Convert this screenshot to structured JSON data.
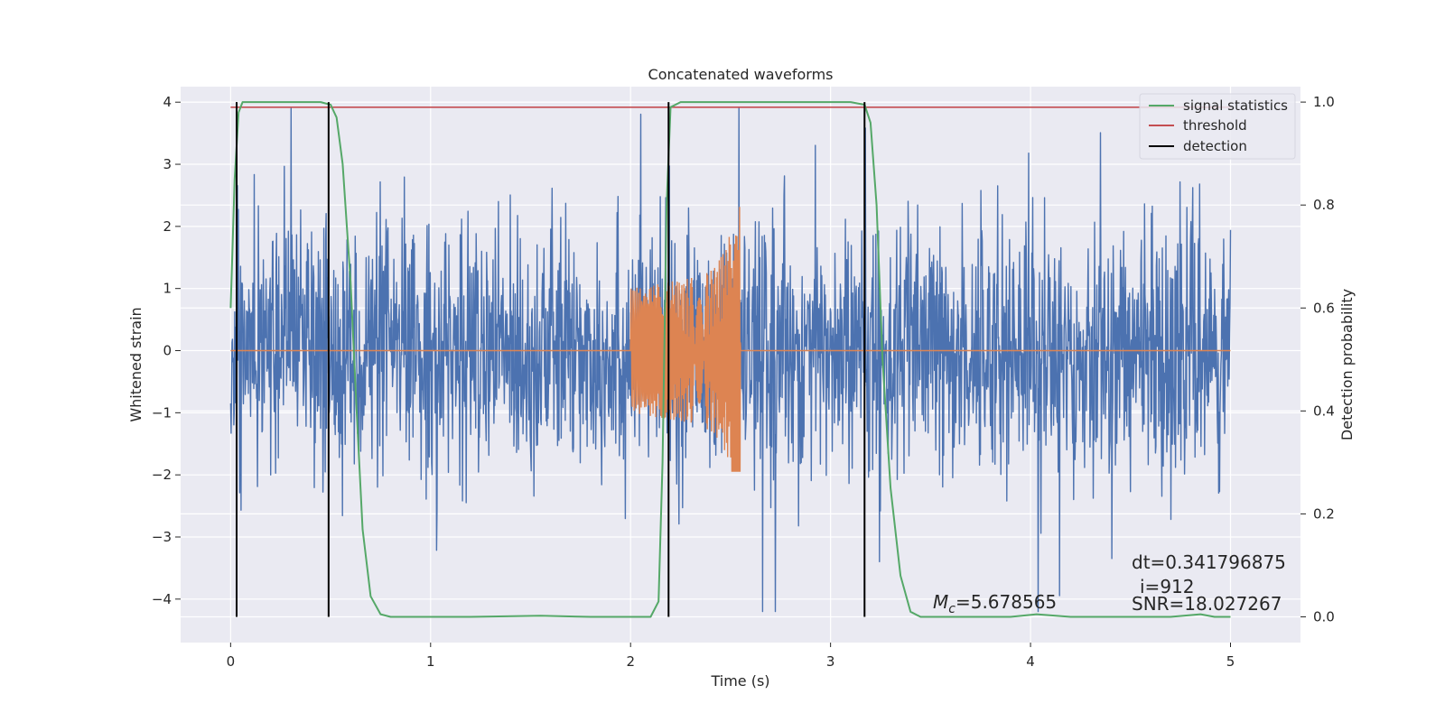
{
  "chart_data": {
    "type": "line",
    "title": "Concatenated waveforms",
    "xlabel": "Time (s)",
    "ylabel": "Whitened strain",
    "y2label": "Detection probability",
    "xlim": [
      -0.25,
      5.35
    ],
    "ylim": [
      -4.7,
      4.25
    ],
    "y2lim": [
      -0.05,
      1.03
    ],
    "x_ticks": [
      0,
      1,
      2,
      3,
      4,
      5
    ],
    "y_ticks": [
      -4,
      -3,
      -2,
      -1,
      0,
      1,
      2,
      3,
      4
    ],
    "y2_ticks": [
      0.0,
      0.2,
      0.4,
      0.6,
      0.8,
      1.0
    ],
    "x_tick_labels": [
      "0",
      "1",
      "2",
      "3",
      "4",
      "5"
    ],
    "y_tick_labels": [
      "−4",
      "−3",
      "−2",
      "−1",
      "0",
      "1",
      "2",
      "3",
      "4"
    ],
    "y2_tick_labels": [
      "0.0",
      "0.2",
      "0.4",
      "0.6",
      "0.8",
      "1.0"
    ],
    "grid": true,
    "legend_position": "top-right",
    "colors": {
      "noise": "#4c72b0",
      "waveform": "#dd8452",
      "signal_statistics": "#55a868",
      "threshold": "#c44e52",
      "detection": "#000000",
      "plot_bg": "#eaeaf2",
      "grid": "#ffffff"
    },
    "legend": [
      {
        "name": "signal statistics",
        "color": "#55a868"
      },
      {
        "name": "threshold",
        "color": "#c44e52"
      },
      {
        "name": "detection",
        "color": "#000000"
      }
    ],
    "noise": {
      "x_range": [
        0,
        5
      ],
      "y_range_approx": [
        -4.2,
        3.9
      ],
      "typical_amplitude": 1.0
    },
    "waveform": {
      "x_range": [
        2.0,
        2.55
      ],
      "peak_amplitude": 2.8,
      "min_amplitude": -1.95
    },
    "signal_statistics": {
      "x": [
        0,
        0.02,
        0.04,
        0.06,
        0.1,
        0.2,
        0.45,
        0.5,
        0.53,
        0.56,
        0.6,
        0.63,
        0.66,
        0.7,
        0.75,
        0.8,
        1.2,
        1.55,
        1.8,
        2.1,
        2.14,
        2.16,
        2.18,
        2.2,
        2.25,
        2.4,
        3.1,
        3.17,
        3.2,
        3.23,
        3.26,
        3.3,
        3.35,
        3.4,
        3.45,
        3.5,
        3.9,
        4.03,
        4.2,
        4.7,
        4.85,
        4.92,
        5.0
      ],
      "y": [
        0.6,
        0.85,
        0.98,
        1.0,
        1.0,
        1.0,
        1.0,
        0.995,
        0.97,
        0.88,
        0.65,
        0.4,
        0.17,
        0.04,
        0.005,
        0.0,
        0.0,
        0.002,
        0.0,
        0.0,
        0.03,
        0.3,
        0.8,
        0.99,
        1.0,
        1.0,
        1.0,
        0.995,
        0.96,
        0.8,
        0.5,
        0.25,
        0.08,
        0.01,
        0.0,
        0.0,
        0.0,
        0.005,
        0.0,
        0.0,
        0.005,
        0.0,
        0.0
      ]
    },
    "threshold": {
      "value": 0.99,
      "x_range": [
        0,
        5
      ]
    },
    "detections": [
      0.03,
      0.49,
      2.19,
      3.17
    ],
    "annotations": [
      {
        "label": "Mc",
        "value": "=5.678565"
      },
      {
        "text": "dt=0.341796875"
      },
      {
        "text": "i=912"
      },
      {
        "text": "SNR=18.027267"
      }
    ]
  }
}
